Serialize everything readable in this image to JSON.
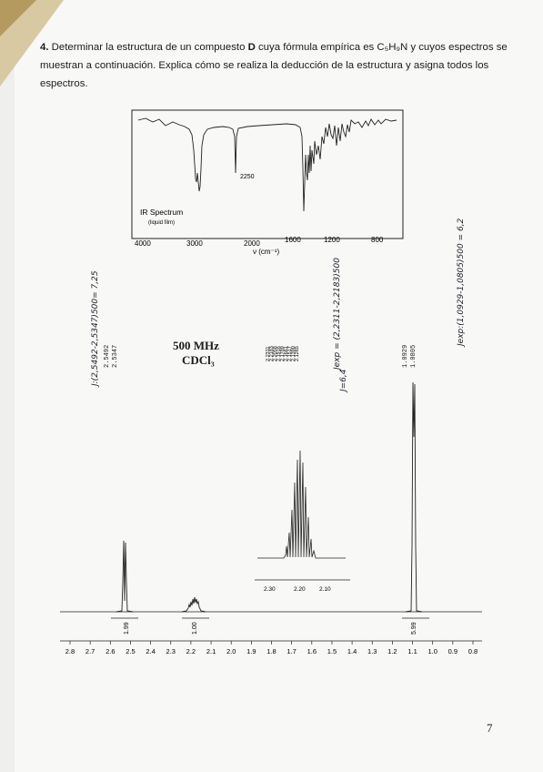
{
  "question": {
    "number": "4.",
    "text_before": "Determinar la estructura de un compuesto",
    "compound": "D",
    "text_mid": "cuya fórmula empírica es",
    "formula": "C₅H₉N",
    "text_after": "y cuyos espectros se muestran a continuación. Explica cómo se realiza la deducción de la estructura y asigna todos los espectros."
  },
  "ir": {
    "title": "IR Spectrum",
    "subtitle": "(liquid film)",
    "peak_label": "2250",
    "xlabel": "ν (cm⁻¹)",
    "ticks": [
      "4000",
      "3000",
      "2000",
      "1600",
      "1200",
      "800"
    ]
  },
  "nmr": {
    "frequency": "500 MHz",
    "solvent": "CDCl₃",
    "peaks_left": [
      "2.5492",
      "2.5347"
    ],
    "peaks_mid": [
      "2.2311",
      "2.2183",
      "2.2058",
      "2.1916",
      "2.1789",
      "2.1661",
      "2.1517",
      "2.1390",
      "2.1265"
    ],
    "peaks_right": [
      "1.0929",
      "1.0805"
    ],
    "integrals": [
      "1.99",
      "1.00",
      "5.99"
    ],
    "axis_ticks": [
      "2.8",
      "2.7",
      "2.6",
      "2.5",
      "2.4",
      "2.3",
      "2.2",
      "2.1",
      "2.0",
      "1.9",
      "1.8",
      "1.7",
      "1.6",
      "1.5",
      "1.4",
      "1.3",
      "1.2",
      "1.1",
      "1.0",
      "0.9",
      "0.8"
    ],
    "inset_ticks": [
      "2.30",
      "2.20",
      "2.10"
    ]
  },
  "handwritten": {
    "left": "J:(2,5492-2,5347)500= 7,25",
    "mid1": "Jexp = (2,2311-2,2183)500",
    "mid2": "J=6,4",
    "right": "Jexp:(1,0929-1,0805)500 = 6,2"
  },
  "page_number": "7",
  "colors": {
    "paper": "#f8f8f6",
    "ink": "#1b1b1b",
    "handwriting": "#1c1c2a"
  }
}
